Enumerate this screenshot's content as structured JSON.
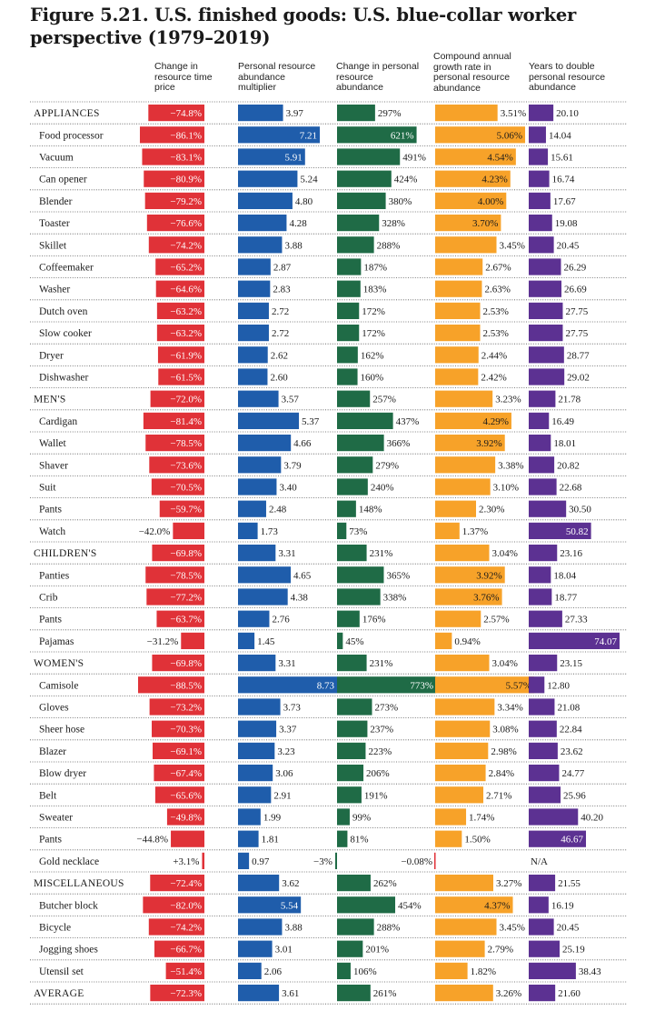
{
  "title": "Figure 5.21. U.S. finished goods: U.S. blue-collar worker perspective (1979–2019)",
  "columns": [
    "Change in resource time price",
    "Personal resource abundance multiplier",
    "Change in personal resource abundance",
    "Compound annual growth rate in personal resource abundance",
    "Years to double personal resource abundance"
  ],
  "colors": {
    "red": "#e03238",
    "blue": "#1f5dab",
    "green": "#1f6b46",
    "orange": "#f7a229",
    "purple": "#5c3192"
  },
  "chart_data": {
    "type": "table",
    "rows": [
      {
        "label": "APPLIANCES",
        "group": true,
        "time_price": "−74.8%",
        "multiplier": "3.97",
        "change": "297%",
        "cagr": "3.51%",
        "years": "20.10"
      },
      {
        "label": "Food processor",
        "time_price": "−86.1%",
        "multiplier": "7.21",
        "change": "621%",
        "cagr": "5.06%",
        "years": "14.04"
      },
      {
        "label": "Vacuum",
        "time_price": "−83.1%",
        "multiplier": "5.91",
        "change": "491%",
        "cagr": "4.54%",
        "years": "15.61"
      },
      {
        "label": "Can opener",
        "time_price": "−80.9%",
        "multiplier": "5.24",
        "change": "424%",
        "cagr": "4.23%",
        "years": "16.74"
      },
      {
        "label": "Blender",
        "time_price": "−79.2%",
        "multiplier": "4.80",
        "change": "380%",
        "cagr": "4.00%",
        "years": "17.67"
      },
      {
        "label": "Toaster",
        "time_price": "−76.6%",
        "multiplier": "4.28",
        "change": "328%",
        "cagr": "3.70%",
        "years": "19.08"
      },
      {
        "label": "Skillet",
        "time_price": "−74.2%",
        "multiplier": "3.88",
        "change": "288%",
        "cagr": "3.45%",
        "years": "20.45"
      },
      {
        "label": "Coffeemaker",
        "time_price": "−65.2%",
        "multiplier": "2.87",
        "change": "187%",
        "cagr": "2.67%",
        "years": "26.29"
      },
      {
        "label": "Washer",
        "time_price": "−64.6%",
        "multiplier": "2.83",
        "change": "183%",
        "cagr": "2.63%",
        "years": "26.69"
      },
      {
        "label": "Dutch oven",
        "time_price": "−63.2%",
        "multiplier": "2.72",
        "change": "172%",
        "cagr": "2.53%",
        "years": "27.75"
      },
      {
        "label": "Slow cooker",
        "time_price": "−63.2%",
        "multiplier": "2.72",
        "change": "172%",
        "cagr": "2.53%",
        "years": "27.75"
      },
      {
        "label": "Dryer",
        "time_price": "−61.9%",
        "multiplier": "2.62",
        "change": "162%",
        "cagr": "2.44%",
        "years": "28.77"
      },
      {
        "label": "Dishwasher",
        "time_price": "−61.5%",
        "multiplier": "2.60",
        "change": "160%",
        "cagr": "2.42%",
        "years": "29.02"
      },
      {
        "label": "MEN'S",
        "group": true,
        "time_price": "−72.0%",
        "multiplier": "3.57",
        "change": "257%",
        "cagr": "3.23%",
        "years": "21.78"
      },
      {
        "label": "Cardigan",
        "time_price": "−81.4%",
        "multiplier": "5.37",
        "change": "437%",
        "cagr": "4.29%",
        "years": "16.49"
      },
      {
        "label": "Wallet",
        "time_price": "−78.5%",
        "multiplier": "4.66",
        "change": "366%",
        "cagr": "3.92%",
        "years": "18.01"
      },
      {
        "label": "Shaver",
        "time_price": "−73.6%",
        "multiplier": "3.79",
        "change": "279%",
        "cagr": "3.38%",
        "years": "20.82"
      },
      {
        "label": "Suit",
        "time_price": "−70.5%",
        "multiplier": "3.40",
        "change": "240%",
        "cagr": "3.10%",
        "years": "22.68"
      },
      {
        "label": "Pants",
        "time_price": "−59.7%",
        "multiplier": "2.48",
        "change": "148%",
        "cagr": "2.30%",
        "years": "30.50"
      },
      {
        "label": "Watch",
        "time_price": "−42.0%",
        "multiplier": "1.73",
        "change": "73%",
        "cagr": "1.37%",
        "years": "50.82"
      },
      {
        "label": "CHILDREN'S",
        "group": true,
        "time_price": "−69.8%",
        "multiplier": "3.31",
        "change": "231%",
        "cagr": "3.04%",
        "years": "23.16"
      },
      {
        "label": "Panties",
        "time_price": "−78.5%",
        "multiplier": "4.65",
        "change": "365%",
        "cagr": "3.92%",
        "years": "18.04"
      },
      {
        "label": "Crib",
        "time_price": "−77.2%",
        "multiplier": "4.38",
        "change": "338%",
        "cagr": "3.76%",
        "years": "18.77"
      },
      {
        "label": "Pants",
        "time_price": "−63.7%",
        "multiplier": "2.76",
        "change": "176%",
        "cagr": "2.57%",
        "years": "27.33"
      },
      {
        "label": "Pajamas",
        "time_price": "−31.2%",
        "multiplier": "1.45",
        "change": "45%",
        "cagr": "0.94%",
        "years": "74.07"
      },
      {
        "label": "WOMEN'S",
        "group": true,
        "time_price": "−69.8%",
        "multiplier": "3.31",
        "change": "231%",
        "cagr": "3.04%",
        "years": "23.15"
      },
      {
        "label": "Camisole",
        "time_price": "−88.5%",
        "multiplier": "8.73",
        "change": "773%",
        "cagr": "5.57%",
        "years": "12.80"
      },
      {
        "label": "Gloves",
        "time_price": "−73.2%",
        "multiplier": "3.73",
        "change": "273%",
        "cagr": "3.34%",
        "years": "21.08"
      },
      {
        "label": "Sheer hose",
        "time_price": "−70.3%",
        "multiplier": "3.37",
        "change": "237%",
        "cagr": "3.08%",
        "years": "22.84"
      },
      {
        "label": "Blazer",
        "time_price": "−69.1%",
        "multiplier": "3.23",
        "change": "223%",
        "cagr": "2.98%",
        "years": "23.62"
      },
      {
        "label": "Blow dryer",
        "time_price": "−67.4%",
        "multiplier": "3.06",
        "change": "206%",
        "cagr": "2.84%",
        "years": "24.77"
      },
      {
        "label": "Belt",
        "time_price": "−65.6%",
        "multiplier": "2.91",
        "change": "191%",
        "cagr": "2.71%",
        "years": "25.96"
      },
      {
        "label": "Sweater",
        "time_price": "−49.8%",
        "multiplier": "1.99",
        "change": "99%",
        "cagr": "1.74%",
        "years": "40.20"
      },
      {
        "label": "Pants",
        "time_price": "−44.8%",
        "multiplier": "1.81",
        "change": "81%",
        "cagr": "1.50%",
        "years": "46.67"
      },
      {
        "label": "Gold necklace",
        "time_price": "+3.1%",
        "multiplier": "0.97",
        "change": "−3%",
        "cagr": "−0.08%",
        "years": "N/A"
      },
      {
        "label": "MISCELLANEOUS",
        "group": true,
        "time_price": "−72.4%",
        "multiplier": "3.62",
        "change": "262%",
        "cagr": "3.27%",
        "years": "21.55"
      },
      {
        "label": "Butcher block",
        "time_price": "−82.0%",
        "multiplier": "5.54",
        "change": "454%",
        "cagr": "4.37%",
        "years": "16.19"
      },
      {
        "label": "Bicycle",
        "time_price": "−74.2%",
        "multiplier": "3.88",
        "change": "288%",
        "cagr": "3.45%",
        "years": "20.45"
      },
      {
        "label": "Jogging shoes",
        "time_price": "−66.7%",
        "multiplier": "3.01",
        "change": "201%",
        "cagr": "2.79%",
        "years": "25.19"
      },
      {
        "label": "Utensil set",
        "time_price": "−51.4%",
        "multiplier": "2.06",
        "change": "106%",
        "cagr": "1.82%",
        "years": "38.43"
      },
      {
        "label": "AVERAGE",
        "group": true,
        "time_price": "−72.3%",
        "multiplier": "3.61",
        "change": "261%",
        "cagr": "3.26%",
        "years": "21.60"
      }
    ]
  }
}
